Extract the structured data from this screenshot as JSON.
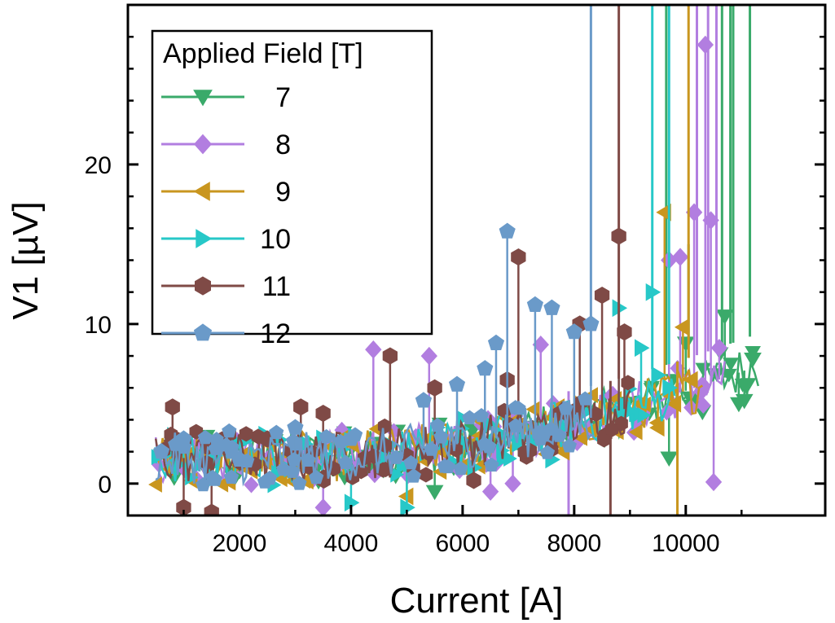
{
  "chart_data": {
    "type": "scatter",
    "title": "",
    "xlabel": "Current [A]",
    "ylabel": "V1 [µV]",
    "xlim": [
      0,
      12500
    ],
    "ylim": [
      -2,
      30
    ],
    "x_ticks": [
      2000,
      4000,
      6000,
      8000,
      10000
    ],
    "x_tick_labels": [
      "2000",
      "4000",
      "6000",
      "8000",
      "10000"
    ],
    "y_ticks": [
      0,
      10,
      20
    ],
    "y_tick_labels": [
      "0",
      "10",
      "20"
    ],
    "legend": {
      "title": "Applied Field [T]",
      "placement": "top-left"
    },
    "series": [
      {
        "name": "7",
        "color": "#3aaa6a",
        "marker": "triangle-down",
        "points": [
          [
            900,
            1.0
          ],
          [
            2000,
            0.8
          ],
          [
            3000,
            1.2
          ],
          [
            4000,
            1.0
          ],
          [
            4800,
            0.5
          ],
          [
            5500,
            -0.5
          ],
          [
            6500,
            2.5
          ],
          [
            7500,
            3.0
          ],
          [
            8200,
            3.5
          ],
          [
            9200,
            4.0
          ],
          [
            9700,
            1.6
          ],
          [
            10000,
            8.8
          ],
          [
            10300,
            4.5
          ],
          [
            10700,
            10.5
          ],
          [
            10950,
            5.0
          ],
          [
            11050,
            5.2
          ],
          [
            11200,
            7.8
          ]
        ],
        "spikes": [
          [
            9650,
            30
          ],
          [
            10050,
            15
          ],
          [
            10650,
            30
          ],
          [
            10800,
            30
          ],
          [
            10850,
            30
          ],
          [
            11150,
            30
          ]
        ]
      },
      {
        "name": "8",
        "color": "#b27ee0",
        "marker": "diamond",
        "points": [
          [
            1000,
            1.0
          ],
          [
            2500,
            1.5
          ],
          [
            3500,
            -1.5
          ],
          [
            4400,
            8.4
          ],
          [
            5400,
            8.0
          ],
          [
            6500,
            -0.5
          ],
          [
            6900,
            0
          ],
          [
            7400,
            8.7
          ],
          [
            8000,
            3.5
          ],
          [
            9200,
            4.5
          ],
          [
            9700,
            14.0
          ],
          [
            9900,
            14.2
          ],
          [
            10150,
            17.0
          ],
          [
            10350,
            27.5
          ],
          [
            10450,
            16.5
          ],
          [
            10500,
            0.1
          ],
          [
            10600,
            8.5
          ]
        ],
        "spikes": [
          [
            10200,
            30
          ],
          [
            10400,
            30
          ],
          [
            10550,
            30
          ],
          [
            7900,
            -2
          ]
        ]
      },
      {
        "name": "9",
        "color": "#c9961f",
        "marker": "triangle-left",
        "points": [
          [
            1000,
            1.5
          ],
          [
            2000,
            1.2
          ],
          [
            3000,
            1.8
          ],
          [
            4000,
            2.5
          ],
          [
            5000,
            -0.8
          ],
          [
            6000,
            1.0
          ],
          [
            7000,
            3.5
          ],
          [
            7800,
            2.0
          ],
          [
            8800,
            4.5
          ],
          [
            9500,
            3.5
          ],
          [
            9620,
            17.0
          ],
          [
            9800,
            5.0
          ],
          [
            9950,
            9.8
          ],
          [
            10100,
            6.5
          ]
        ],
        "spikes": [
          [
            10050,
            30
          ],
          [
            9850,
            -2
          ]
        ]
      },
      {
        "name": "10",
        "color": "#27c8c8",
        "marker": "triangle-right",
        "points": [
          [
            900,
            1.2
          ],
          [
            2000,
            2.5
          ],
          [
            3000,
            2.0
          ],
          [
            4000,
            -1.2
          ],
          [
            5000,
            -1.5
          ],
          [
            6200,
            1.0
          ],
          [
            7000,
            2.5
          ],
          [
            7600,
            1.5
          ],
          [
            8200,
            4.5
          ],
          [
            8800,
            11.0
          ],
          [
            9200,
            8.5
          ],
          [
            9400,
            12.0
          ],
          [
            9700,
            6.0
          ]
        ],
        "spikes": [
          [
            9400,
            30
          ],
          [
            9700,
            30
          ]
        ]
      },
      {
        "name": "11",
        "color": "#7f4a46",
        "marker": "hexagon",
        "points": [
          [
            800,
            4.8
          ],
          [
            1000,
            -1.5
          ],
          [
            1500,
            -1.8
          ],
          [
            2500,
            2.8
          ],
          [
            3100,
            4.8
          ],
          [
            3500,
            4.4
          ],
          [
            4700,
            8.0
          ],
          [
            5500,
            6.0
          ],
          [
            6200,
            0.2
          ],
          [
            6800,
            6.5
          ],
          [
            7000,
            14.2
          ],
          [
            8100,
            10.0
          ],
          [
            8500,
            11.8
          ],
          [
            8800,
            15.5
          ],
          [
            8900,
            9.5
          ]
        ],
        "spikes": [
          [
            8650,
            -2
          ],
          [
            8800,
            30
          ]
        ]
      },
      {
        "name": "12",
        "color": "#6a9ac9",
        "marker": "pentagon",
        "points": [
          [
            600,
            2.0
          ],
          [
            1000,
            2.8
          ],
          [
            2000,
            1.5
          ],
          [
            3000,
            3.5
          ],
          [
            4000,
            2.8
          ],
          [
            5300,
            5.2
          ],
          [
            5900,
            6.2
          ],
          [
            6400,
            7.2
          ],
          [
            6600,
            8.8
          ],
          [
            6800,
            15.8
          ],
          [
            7300,
            11.2
          ],
          [
            7600,
            11.0
          ],
          [
            8000,
            9.5
          ],
          [
            8300,
            10.0
          ]
        ],
        "spikes": [
          [
            8300,
            30
          ]
        ]
      }
    ]
  }
}
